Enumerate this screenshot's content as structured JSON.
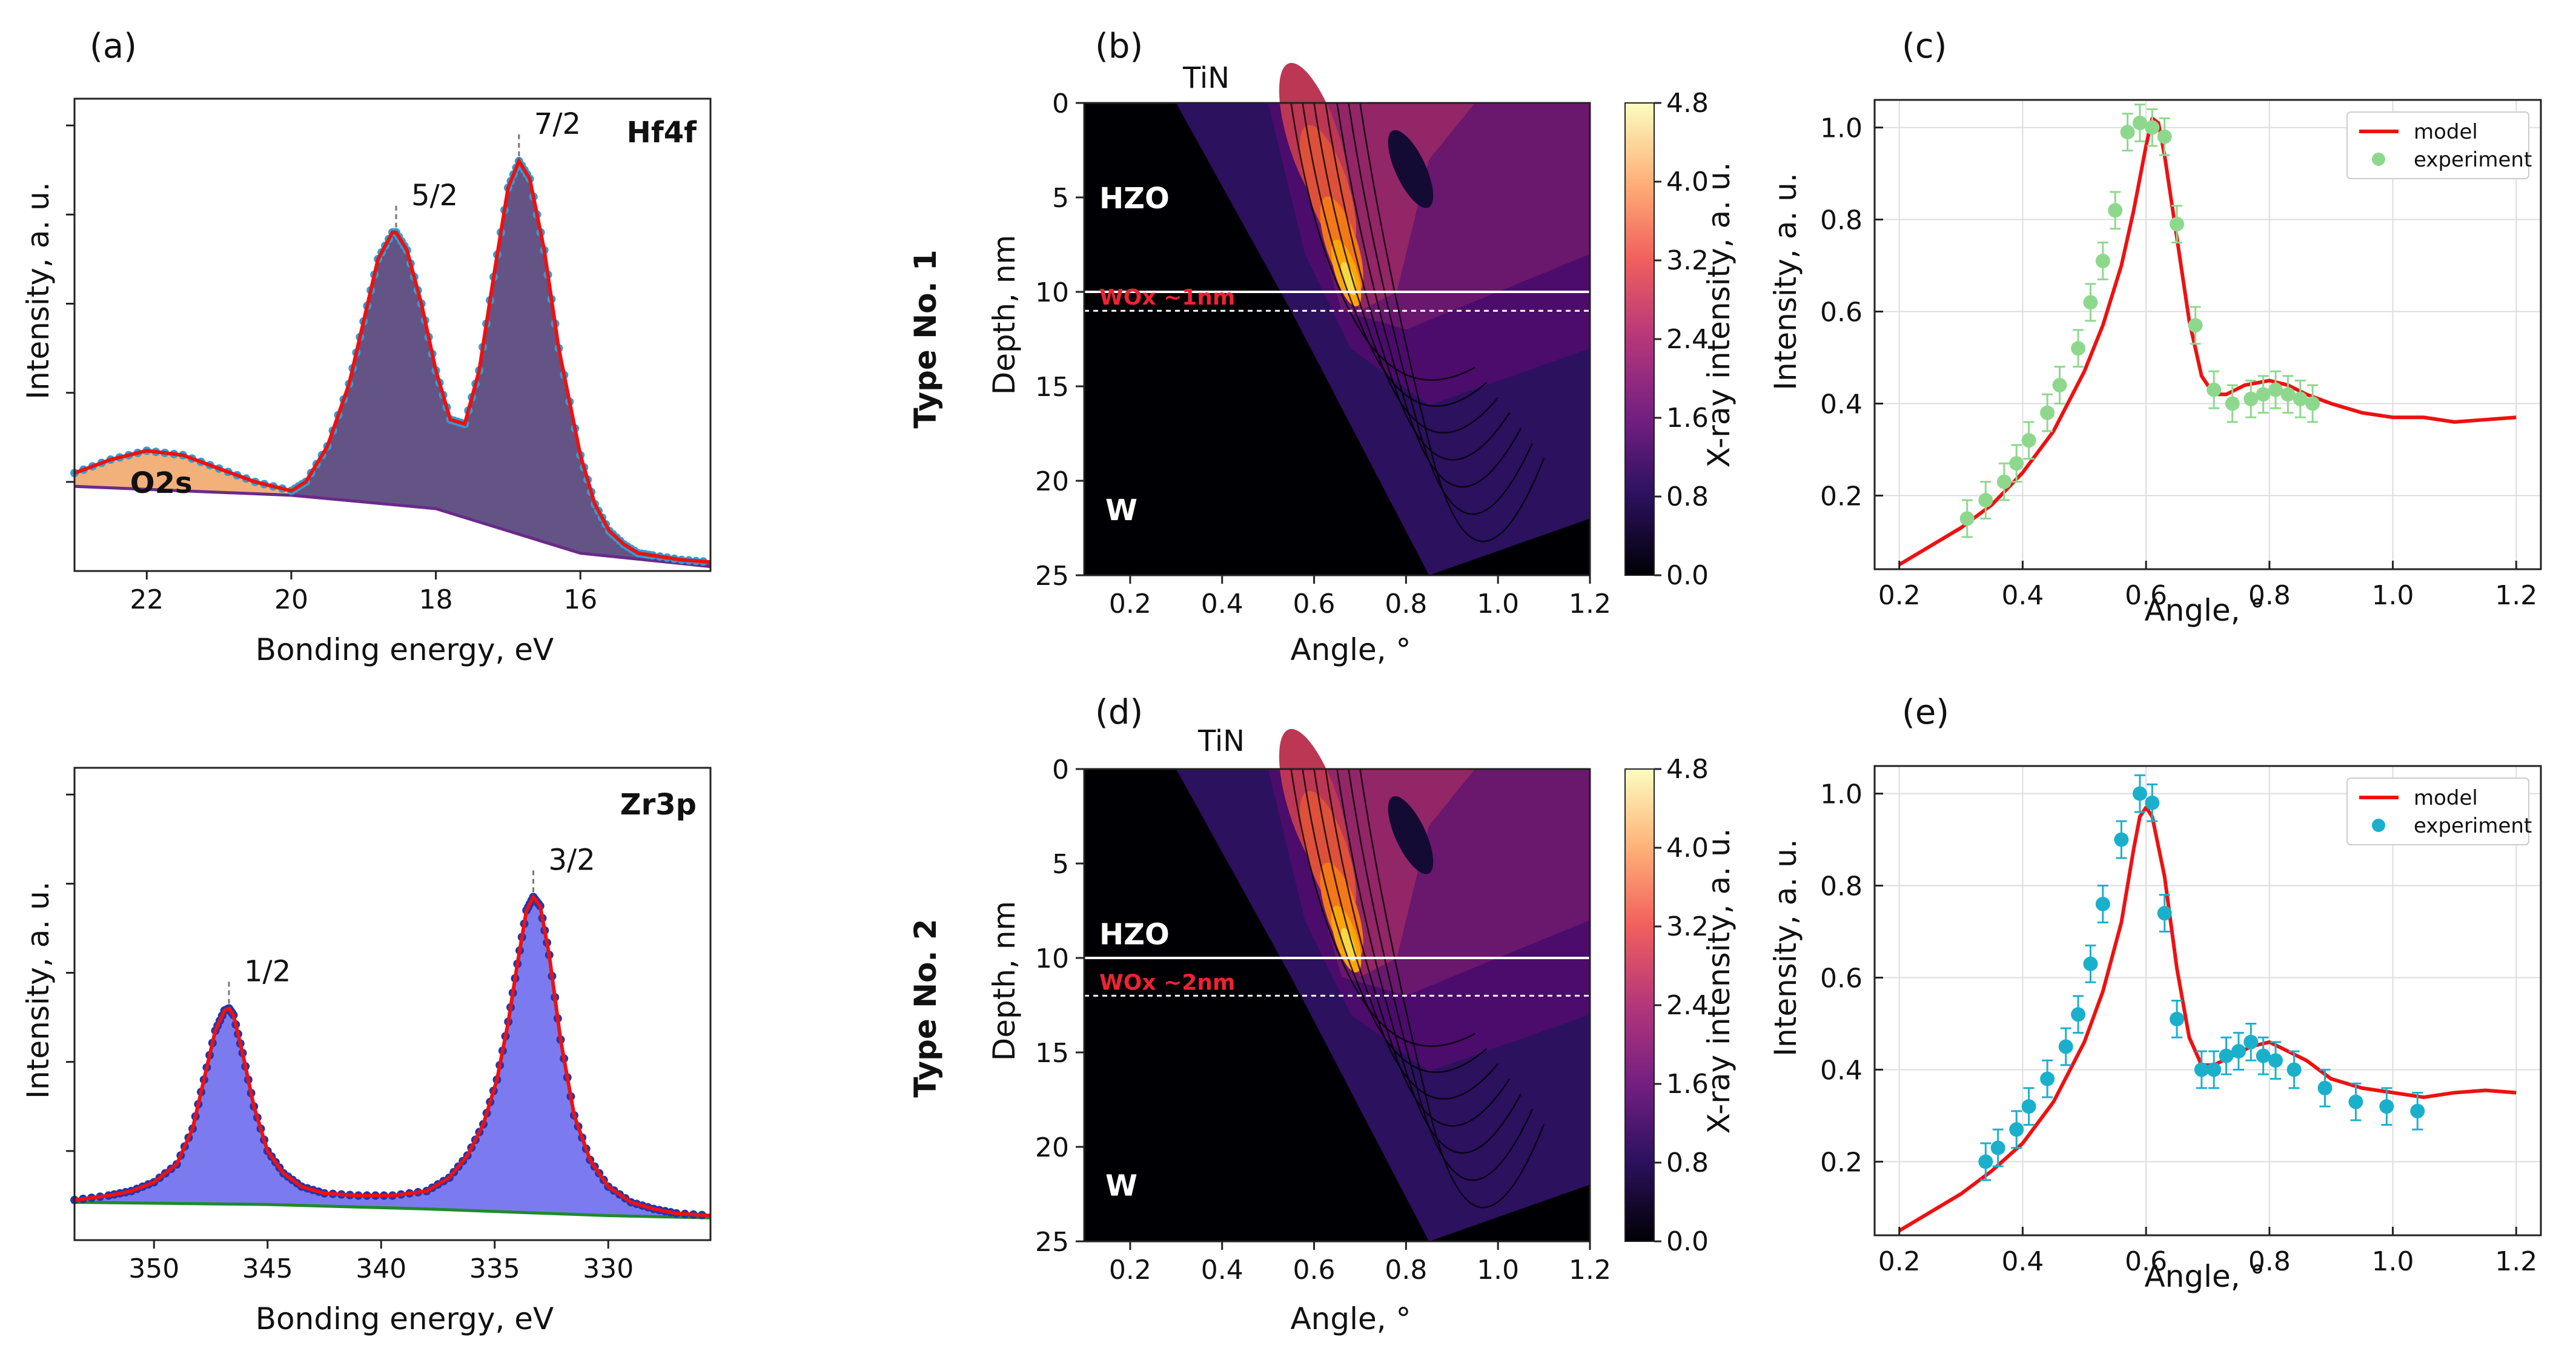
{
  "colors": {
    "hf_fill": "#5b4b7e",
    "o2s_fill": "#f2b07a",
    "zr_fill": "#7474ee",
    "model": "#ee1111",
    "data_hf": "#2e9fd6",
    "data_zr": "#1f37b0",
    "bg_zr": "#1f8a2a",
    "bg_hf": "#6a2a8a",
    "exp_c": "#8ed88e",
    "exp_e": "#1ab0cc"
  },
  "row_labels": [
    "Type No. 1",
    "Type No. 2"
  ],
  "chart_data": [
    {
      "id": "a",
      "type": "line",
      "panel_label": "(a)",
      "title": "Hf4f",
      "xlabel": "Bonding energy, eV",
      "ylabel": "Intensity, a. u.",
      "xlim": [
        23,
        14.2
      ],
      "ylim": [
        0,
        1.06
      ],
      "xticks": [
        22,
        20,
        18,
        16
      ],
      "peaks": [
        {
          "label": "5/2",
          "x": 18.55,
          "y": 0.76
        },
        {
          "label": "7/2",
          "x": 16.85,
          "y": 0.92
        }
      ],
      "region_label": "O2s",
      "background": [
        [
          23,
          0.19
        ],
        [
          20,
          0.17
        ],
        [
          18,
          0.14
        ],
        [
          17,
          0.09
        ],
        [
          16,
          0.04
        ],
        [
          14.2,
          0.01
        ]
      ],
      "series": [
        {
          "name": "Hf4f envelope",
          "x": [
            23,
            22.5,
            22,
            21.5,
            21,
            20.5,
            20,
            19.8,
            19.5,
            19.2,
            19,
            18.8,
            18.6,
            18.55,
            18.4,
            18.2,
            18,
            17.8,
            17.6,
            17.4,
            17.2,
            17,
            16.85,
            16.7,
            16.5,
            16.3,
            16,
            15.8,
            15.6,
            15.4,
            15.2,
            15,
            14.6,
            14.2
          ],
          "y": [
            0.22,
            0.25,
            0.27,
            0.26,
            0.23,
            0.2,
            0.18,
            0.2,
            0.28,
            0.42,
            0.56,
            0.7,
            0.76,
            0.76,
            0.72,
            0.6,
            0.45,
            0.34,
            0.33,
            0.45,
            0.66,
            0.86,
            0.92,
            0.88,
            0.72,
            0.5,
            0.26,
            0.15,
            0.09,
            0.06,
            0.04,
            0.035,
            0.025,
            0.02
          ]
        }
      ]
    },
    {
      "id": "zr",
      "type": "line",
      "title": "Zr3p",
      "xlabel": "Bonding energy, eV",
      "ylabel": "Intensity, a. u.",
      "xlim": [
        353.5,
        325.5
      ],
      "ylim": [
        0,
        1.06
      ],
      "xticks": [
        350,
        345,
        340,
        335,
        330
      ],
      "peaks": [
        {
          "label": "1/2",
          "x": 346.7,
          "y": 0.52
        },
        {
          "label": "3/2",
          "x": 333.3,
          "y": 0.77
        }
      ],
      "background": [
        [
          353.5,
          0.085
        ],
        [
          345,
          0.08
        ],
        [
          338,
          0.07
        ],
        [
          330,
          0.055
        ],
        [
          325.5,
          0.05
        ]
      ],
      "series": [
        {
          "name": "Zr3p envelope",
          "x": [
            353.5,
            352,
            351,
            350,
            349,
            348.3,
            347.8,
            347.3,
            346.9,
            346.7,
            346.5,
            346.1,
            345.6,
            345,
            344.3,
            343.5,
            342.5,
            341,
            339.5,
            338,
            337,
            336.2,
            335.5,
            334.9,
            334.4,
            334,
            333.6,
            333.3,
            333,
            332.6,
            332.1,
            331.5,
            330.8,
            330,
            329,
            328,
            327,
            325.5
          ],
          "y": [
            0.09,
            0.1,
            0.11,
            0.13,
            0.17,
            0.25,
            0.36,
            0.47,
            0.515,
            0.52,
            0.505,
            0.42,
            0.3,
            0.2,
            0.15,
            0.12,
            0.105,
            0.1,
            0.1,
            0.11,
            0.14,
            0.19,
            0.26,
            0.36,
            0.49,
            0.62,
            0.74,
            0.77,
            0.75,
            0.64,
            0.45,
            0.28,
            0.18,
            0.12,
            0.085,
            0.07,
            0.06,
            0.055
          ]
        }
      ]
    },
    {
      "id": "b",
      "type": "heatmap",
      "panel_label": "(b)",
      "top_label": "TiN",
      "xlabel": "Angle, °",
      "ylabel": "Depth, nm",
      "xlim": [
        0.1,
        1.2
      ],
      "ylim": [
        25,
        0
      ],
      "xticks": [
        0.2,
        0.4,
        0.6,
        0.8,
        1.0,
        1.2
      ],
      "yticks": [
        0,
        5,
        10,
        15,
        20,
        25
      ],
      "colorbar_label": "X-ray intensity, a. u.",
      "colorbar_ticks": [
        0.0,
        0.8,
        1.6,
        2.4,
        3.2,
        4.0,
        4.8
      ],
      "layers": [
        {
          "label": "HZO",
          "depth": 5
        },
        {
          "label": "W",
          "depth": 21.5
        }
      ],
      "interface_solid": 10,
      "interface_dotted": 11,
      "wox_label": "WOx ~1nm"
    },
    {
      "id": "c",
      "type": "scatter",
      "panel_label": "(c)",
      "xlabel": "Angle, °",
      "ylabel": "Intensity, a. u.",
      "xlim": [
        0.16,
        1.24
      ],
      "ylim": [
        0.04,
        1.06
      ],
      "xticks": [
        0.2,
        0.4,
        0.6,
        0.8,
        1.0,
        1.2
      ],
      "yticks": [
        0.2,
        0.4,
        0.6,
        0.8,
        1.0
      ],
      "legend": [
        "model",
        "experiment"
      ],
      "model": {
        "x": [
          0.2,
          0.25,
          0.3,
          0.35,
          0.4,
          0.45,
          0.5,
          0.53,
          0.56,
          0.58,
          0.6,
          0.61,
          0.62,
          0.63,
          0.65,
          0.67,
          0.69,
          0.71,
          0.73,
          0.76,
          0.8,
          0.83,
          0.86,
          0.9,
          0.95,
          1.0,
          1.05,
          1.1,
          1.15,
          1.2
        ],
        "y": [
          0.05,
          0.09,
          0.13,
          0.18,
          0.25,
          0.34,
          0.47,
          0.57,
          0.7,
          0.82,
          0.96,
          1.02,
          1.01,
          0.94,
          0.76,
          0.58,
          0.46,
          0.42,
          0.42,
          0.44,
          0.45,
          0.44,
          0.42,
          0.4,
          0.38,
          0.37,
          0.37,
          0.36,
          0.365,
          0.37
        ]
      },
      "experiment": {
        "x": [
          0.31,
          0.34,
          0.37,
          0.39,
          0.41,
          0.44,
          0.46,
          0.49,
          0.51,
          0.53,
          0.55,
          0.57,
          0.59,
          0.61,
          0.63,
          0.65,
          0.68,
          0.71,
          0.74,
          0.77,
          0.79,
          0.81,
          0.83,
          0.85,
          0.87
        ],
        "y": [
          0.15,
          0.19,
          0.23,
          0.27,
          0.32,
          0.38,
          0.44,
          0.52,
          0.62,
          0.71,
          0.82,
          0.99,
          1.01,
          1.0,
          0.98,
          0.79,
          0.57,
          0.43,
          0.4,
          0.41,
          0.42,
          0.43,
          0.42,
          0.41,
          0.4
        ],
        "err": 0.04
      }
    },
    {
      "id": "d",
      "type": "heatmap",
      "panel_label": "(d)",
      "top_label": "TiN",
      "xlabel": "Angle, °",
      "ylabel": "Depth, nm",
      "xlim": [
        0.1,
        1.2
      ],
      "ylim": [
        25,
        0
      ],
      "xticks": [
        0.2,
        0.4,
        0.6,
        0.8,
        1.0,
        1.2
      ],
      "yticks": [
        0,
        5,
        10,
        15,
        20,
        25
      ],
      "colorbar_label": "X-ray intensity, a. u.",
      "colorbar_ticks": [
        0.0,
        0.8,
        1.6,
        2.4,
        3.2,
        4.0,
        4.8
      ],
      "layers": [
        {
          "label": "HZO",
          "depth": 8.7
        },
        {
          "label": "W",
          "depth": 22
        }
      ],
      "interface_solid": 10,
      "interface_dotted": 12,
      "wox_label": "WOx ~2nm"
    },
    {
      "id": "e",
      "type": "scatter",
      "panel_label": "(e)",
      "xlabel": "Angle, °",
      "ylabel": "Intensity, a. u.",
      "xlim": [
        0.16,
        1.24
      ],
      "ylim": [
        0.04,
        1.06
      ],
      "xticks": [
        0.2,
        0.4,
        0.6,
        0.8,
        1.0,
        1.2
      ],
      "yticks": [
        0.2,
        0.4,
        0.6,
        0.8,
        1.0
      ],
      "legend": [
        "model",
        "experiment"
      ],
      "model": {
        "x": [
          0.2,
          0.25,
          0.3,
          0.35,
          0.4,
          0.45,
          0.5,
          0.53,
          0.56,
          0.58,
          0.59,
          0.6,
          0.61,
          0.63,
          0.65,
          0.67,
          0.69,
          0.71,
          0.74,
          0.77,
          0.8,
          0.83,
          0.86,
          0.9,
          0.95,
          1.0,
          1.05,
          1.1,
          1.15,
          1.2
        ],
        "y": [
          0.05,
          0.09,
          0.13,
          0.18,
          0.24,
          0.33,
          0.46,
          0.57,
          0.72,
          0.88,
          0.95,
          0.97,
          0.95,
          0.82,
          0.62,
          0.47,
          0.41,
          0.41,
          0.43,
          0.45,
          0.46,
          0.44,
          0.42,
          0.38,
          0.36,
          0.35,
          0.34,
          0.35,
          0.355,
          0.35
        ]
      },
      "experiment": {
        "x": [
          0.34,
          0.36,
          0.39,
          0.41,
          0.44,
          0.47,
          0.49,
          0.51,
          0.53,
          0.56,
          0.59,
          0.61,
          0.63,
          0.65,
          0.69,
          0.71,
          0.73,
          0.75,
          0.77,
          0.79,
          0.81,
          0.84,
          0.89,
          0.94,
          0.99,
          1.04
        ],
        "y": [
          0.2,
          0.23,
          0.27,
          0.32,
          0.38,
          0.45,
          0.52,
          0.63,
          0.76,
          0.9,
          1.0,
          0.98,
          0.74,
          0.51,
          0.4,
          0.4,
          0.43,
          0.44,
          0.46,
          0.43,
          0.42,
          0.4,
          0.36,
          0.33,
          0.32,
          0.31
        ],
        "err": 0.04
      }
    }
  ]
}
